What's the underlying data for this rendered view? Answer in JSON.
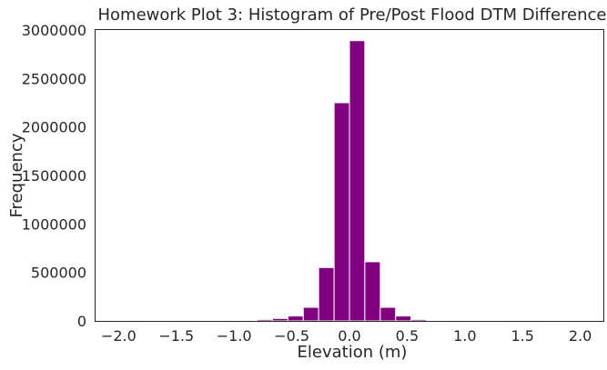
{
  "chart_data": {
    "type": "bar",
    "title": "Homework Plot 3: Histogram of Pre/Post Flood DTM Difference",
    "xlabel": "Elevation (m)",
    "ylabel": "Frequency",
    "xlim": [
      -2.2,
      2.2
    ],
    "ylim": [
      0,
      3000000
    ],
    "x_ticks": [
      -2.0,
      -1.5,
      -1.0,
      -0.5,
      0.0,
      0.5,
      1.0,
      1.5,
      2.0
    ],
    "x_tick_labels": [
      "−2.0",
      "−1.5",
      "−1.0",
      "−0.5",
      "0.0",
      "0.5",
      "1.0",
      "1.5",
      "2.0"
    ],
    "y_ticks": [
      0,
      500000,
      1000000,
      1500000,
      2000000,
      2500000,
      3000000
    ],
    "y_tick_labels": [
      "0",
      "500000",
      "1000000",
      "1500000",
      "2000000",
      "2500000",
      "3000000"
    ],
    "grid": false,
    "bar_color": "#800080",
    "bins": [
      {
        "x0": -2.0,
        "x1": -1.867,
        "count": 0
      },
      {
        "x0": -1.867,
        "x1": -1.733,
        "count": 0
      },
      {
        "x0": -1.733,
        "x1": -1.6,
        "count": 0
      },
      {
        "x0": -1.6,
        "x1": -1.467,
        "count": 0
      },
      {
        "x0": -1.467,
        "x1": -1.333,
        "count": 0
      },
      {
        "x0": -1.333,
        "x1": -1.2,
        "count": 0
      },
      {
        "x0": -1.2,
        "x1": -1.067,
        "count": 0
      },
      {
        "x0": -1.067,
        "x1": -0.933,
        "count": 2000
      },
      {
        "x0": -0.933,
        "x1": -0.8,
        "count": 5000
      },
      {
        "x0": -0.8,
        "x1": -0.667,
        "count": 15000
      },
      {
        "x0": -0.667,
        "x1": -0.533,
        "count": 25000
      },
      {
        "x0": -0.533,
        "x1": -0.4,
        "count": 50000
      },
      {
        "x0": -0.4,
        "x1": -0.267,
        "count": 140000
      },
      {
        "x0": -0.267,
        "x1": -0.133,
        "count": 550000
      },
      {
        "x0": -0.133,
        "x1": 0.0,
        "count": 2250000
      },
      {
        "x0": 0.0,
        "x1": 0.133,
        "count": 2890000
      },
      {
        "x0": 0.133,
        "x1": 0.267,
        "count": 610000
      },
      {
        "x0": 0.267,
        "x1": 0.4,
        "count": 140000
      },
      {
        "x0": 0.4,
        "x1": 0.533,
        "count": 50000
      },
      {
        "x0": 0.533,
        "x1": 0.667,
        "count": 15000
      },
      {
        "x0": 0.667,
        "x1": 0.8,
        "count": 4000
      },
      {
        "x0": 0.8,
        "x1": 0.933,
        "count": 1500
      },
      {
        "x0": 0.933,
        "x1": 1.067,
        "count": 0
      },
      {
        "x0": 1.067,
        "x1": 1.2,
        "count": 0
      },
      {
        "x0": 1.2,
        "x1": 1.333,
        "count": 0
      },
      {
        "x0": 1.333,
        "x1": 1.467,
        "count": 0
      },
      {
        "x0": 1.467,
        "x1": 1.6,
        "count": 0
      },
      {
        "x0": 1.6,
        "x1": 1.733,
        "count": 0
      },
      {
        "x0": 1.733,
        "x1": 1.867,
        "count": 0
      },
      {
        "x0": 1.867,
        "x1": 2.0,
        "count": 0
      }
    ]
  }
}
